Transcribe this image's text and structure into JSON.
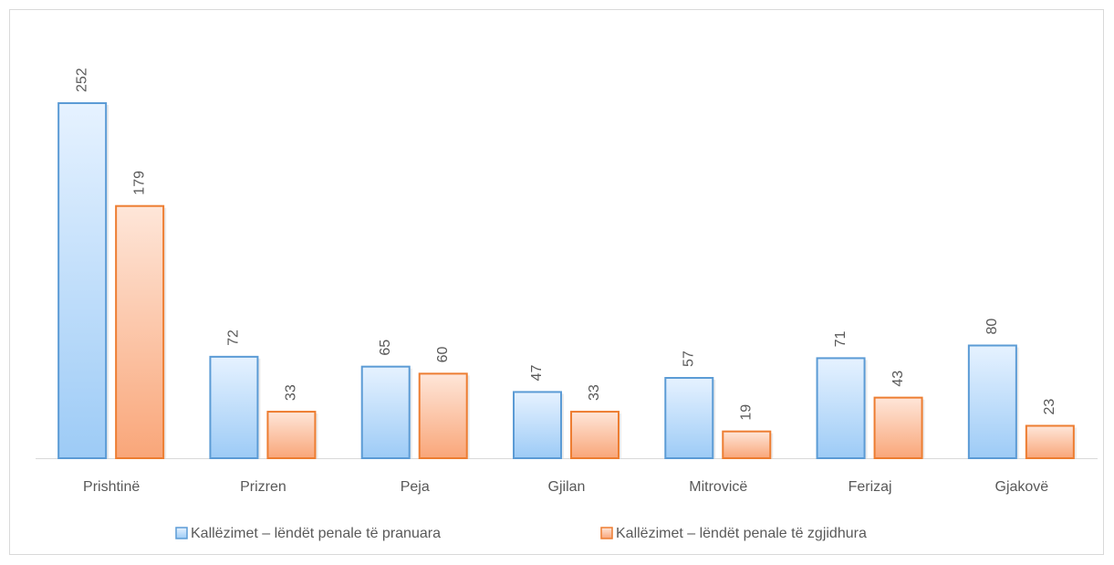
{
  "chart_data": {
    "type": "bar",
    "categories": [
      "Prishtinë",
      "Prizren",
      "Peja",
      "Gjilan",
      "Mitrovicë",
      "Ferizaj",
      "Gjakovë"
    ],
    "series": [
      {
        "name": "Kallëzimet – lëndët penale të pranuara",
        "color": "#5b9bd5",
        "values": [
          252,
          72,
          65,
          47,
          57,
          71,
          80
        ]
      },
      {
        "name": "Kallëzimet – lëndët penale të zgjidhura",
        "color": "#ed7d31",
        "values": [
          179,
          33,
          60,
          33,
          19,
          43,
          23
        ]
      }
    ],
    "legend": "bottom"
  }
}
